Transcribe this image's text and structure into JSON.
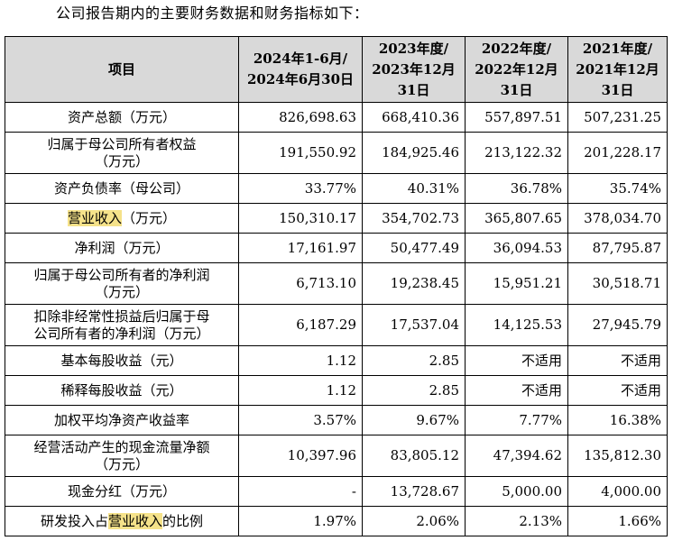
{
  "intro_text": "公司报告期内的主要财务数据和财务指标如下：",
  "highlight_term": "营业收入",
  "highlight_color": "#f5e28a",
  "header_bg": "#d9d9d9",
  "columns": {
    "item": "项目",
    "p1_line1": "2024年1-6月/",
    "p1_line2": "2024年6月30日",
    "p2_line1": "2023年度/",
    "p2_line2": "2023年12月",
    "p2_line3": "31日",
    "p3_line1": "2022年度/",
    "p3_line2": "2022年12月",
    "p3_line3": "31日",
    "p4_line1": "2021年度/",
    "p4_line2": "2021年12月",
    "p4_line3": "31日"
  },
  "rows": [
    {
      "label": "资产总额（万元）",
      "v": [
        "826,698.63",
        "668,410.36",
        "557,897.51",
        "507,231.25"
      ]
    },
    {
      "label_l1": "归属于母公司所有者权益",
      "label_l2": "（万元）",
      "v": [
        "191,550.92",
        "184,925.46",
        "213,122.32",
        "201,228.17"
      ]
    },
    {
      "label": "资产负债率（母公司）",
      "v": [
        "33.77%",
        "40.31%",
        "36.78%",
        "35.74%"
      ]
    },
    {
      "label_pre": "",
      "label_hl": "营业收入",
      "label_post": "（万元）",
      "v": [
        "150,310.17",
        "354,702.73",
        "365,807.65",
        "378,034.70"
      ]
    },
    {
      "label": "净利润（万元）",
      "v": [
        "17,161.97",
        "50,477.49",
        "36,094.53",
        "87,795.87"
      ]
    },
    {
      "label_l1": "归属于母公司所有者的净利润",
      "label_l2": "（万元）",
      "v": [
        "6,713.10",
        "19,238.45",
        "15,951.21",
        "30,518.71"
      ]
    },
    {
      "label_l1": "扣除非经常性损益后归属于母",
      "label_l2": "公司所有者的净利润（万元）",
      "v": [
        "6,187.29",
        "17,537.04",
        "14,125.53",
        "27,945.79"
      ]
    },
    {
      "label": "基本每股收益（元）",
      "v": [
        "1.12",
        "2.85",
        "不适用",
        "不适用"
      ]
    },
    {
      "label": "稀释每股收益（元）",
      "v": [
        "1.12",
        "2.85",
        "不适用",
        "不适用"
      ]
    },
    {
      "label": "加权平均净资产收益率",
      "v": [
        "3.57%",
        "9.67%",
        "7.77%",
        "16.38%"
      ]
    },
    {
      "label_l1": "经营活动产生的现金流量净额",
      "label_l2": "（万元）",
      "v": [
        "10,397.96",
        "83,805.12",
        "47,394.62",
        "135,812.30"
      ]
    },
    {
      "label": "现金分红（万元）",
      "v": [
        "-",
        "13,728.67",
        "5,000.00",
        "4,000.00"
      ]
    },
    {
      "label_pre": "研发投入占",
      "label_hl": "营业收入",
      "label_post": "的比例",
      "v": [
        "1.97%",
        "2.06%",
        "2.13%",
        "1.66%"
      ]
    }
  ]
}
